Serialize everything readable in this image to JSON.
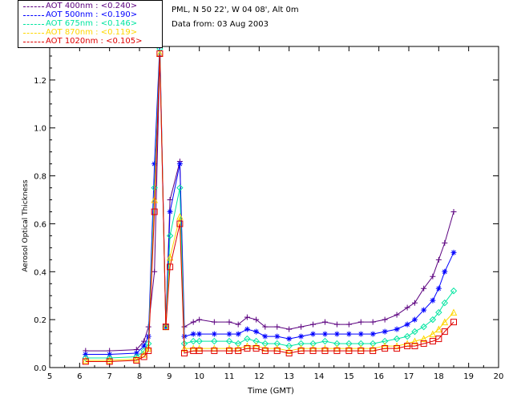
{
  "header": {
    "station": "PML, N 50 22', W 04 08', Alt 0m",
    "date": "Data from: 03 Aug 2003"
  },
  "chart_data": {
    "type": "line",
    "title": "",
    "xlabel": "Time (GMT)",
    "ylabel": "Aerosol Optical Thickness",
    "xlim": [
      5,
      20
    ],
    "ylim": [
      0,
      1.34
    ],
    "xticks": [
      "5",
      "6",
      "7",
      "8",
      "9",
      "10",
      "11",
      "12",
      "13",
      "14",
      "15",
      "16",
      "17",
      "18",
      "19",
      "20"
    ],
    "yticks": [
      "0.0",
      "0.2",
      "0.4",
      "0.6",
      "0.8",
      "1.0",
      "1.2"
    ],
    "legend_position": "top-left",
    "series": [
      {
        "name": "AOT  400nm : <0.240>",
        "color": "#5b007f",
        "marker": "plus",
        "x": [
          6.2,
          7.0,
          7.9,
          8.15,
          8.3,
          8.5,
          8.68,
          8.88,
          9.02,
          9.35,
          9.5,
          9.8,
          10.0,
          10.5,
          11.0,
          11.3,
          11.6,
          11.9,
          12.2,
          12.6,
          13.0,
          13.4,
          13.8,
          14.2,
          14.6,
          15.0,
          15.4,
          15.8,
          16.2,
          16.6,
          16.95,
          17.2,
          17.5,
          17.8,
          18.0,
          18.2,
          18.5
        ],
        "y": [
          0.07,
          0.07,
          0.075,
          0.11,
          0.17,
          0.4,
          1.3,
          0.18,
          0.7,
          0.86,
          0.17,
          0.19,
          0.2,
          0.19,
          0.19,
          0.18,
          0.21,
          0.2,
          0.17,
          0.17,
          0.16,
          0.17,
          0.18,
          0.19,
          0.18,
          0.18,
          0.19,
          0.19,
          0.2,
          0.22,
          0.25,
          0.27,
          0.33,
          0.38,
          0.45,
          0.52,
          0.65
        ]
      },
      {
        "name": "AOT  500nm : <0.190>",
        "color": "#0000ff",
        "marker": "star",
        "x": [
          6.2,
          7.0,
          7.9,
          8.15,
          8.3,
          8.5,
          8.68,
          8.88,
          9.02,
          9.35,
          9.5,
          9.8,
          10.0,
          10.5,
          11.0,
          11.3,
          11.6,
          11.9,
          12.2,
          12.6,
          13.0,
          13.4,
          13.8,
          14.2,
          14.6,
          15.0,
          15.4,
          15.8,
          16.2,
          16.6,
          16.95,
          17.2,
          17.5,
          17.8,
          18.0,
          18.2,
          18.5
        ],
        "y": [
          0.055,
          0.055,
          0.06,
          0.09,
          0.13,
          0.85,
          1.35,
          0.17,
          0.65,
          0.85,
          0.13,
          0.14,
          0.14,
          0.14,
          0.14,
          0.14,
          0.16,
          0.15,
          0.13,
          0.13,
          0.12,
          0.13,
          0.14,
          0.14,
          0.14,
          0.14,
          0.14,
          0.14,
          0.15,
          0.16,
          0.18,
          0.2,
          0.24,
          0.28,
          0.33,
          0.4,
          0.48
        ]
      },
      {
        "name": "AOT  675nm : <0.146>",
        "color": "#00e5a0",
        "marker": "diamond",
        "x": [
          6.2,
          7.0,
          7.9,
          8.15,
          8.3,
          8.5,
          8.68,
          8.88,
          9.02,
          9.35,
          9.5,
          9.8,
          10.0,
          10.5,
          11.0,
          11.3,
          11.6,
          11.9,
          12.2,
          12.6,
          13.0,
          13.4,
          13.8,
          14.2,
          14.6,
          15.0,
          15.4,
          15.8,
          16.2,
          16.6,
          16.95,
          17.2,
          17.5,
          17.8,
          18.0,
          18.2,
          18.5
        ],
        "y": [
          0.04,
          0.04,
          0.045,
          0.07,
          0.1,
          0.75,
          1.33,
          0.17,
          0.55,
          0.75,
          0.1,
          0.11,
          0.11,
          0.11,
          0.11,
          0.1,
          0.12,
          0.11,
          0.1,
          0.1,
          0.09,
          0.1,
          0.1,
          0.11,
          0.1,
          0.1,
          0.1,
          0.1,
          0.11,
          0.12,
          0.13,
          0.15,
          0.17,
          0.2,
          0.23,
          0.27,
          0.32
        ]
      },
      {
        "name": "AOT  870nm : <0.119>",
        "color": "#ffd700",
        "marker": "triangle",
        "x": [
          6.2,
          7.0,
          7.9,
          8.15,
          8.3,
          8.5,
          8.68,
          8.88,
          9.02,
          9.35,
          9.5,
          9.8,
          10.0,
          10.5,
          11.0,
          11.3,
          11.6,
          11.9,
          12.2,
          12.6,
          13.0,
          13.4,
          13.8,
          14.2,
          14.6,
          15.0,
          15.4,
          15.8,
          16.2,
          16.6,
          16.95,
          17.2,
          17.5,
          17.8,
          18.0,
          18.2,
          18.5
        ],
        "y": [
          0.03,
          0.03,
          0.035,
          0.055,
          0.08,
          0.7,
          1.31,
          0.17,
          0.46,
          0.63,
          0.08,
          0.08,
          0.08,
          0.08,
          0.08,
          0.08,
          0.09,
          0.09,
          0.08,
          0.08,
          0.07,
          0.08,
          0.08,
          0.08,
          0.08,
          0.08,
          0.08,
          0.08,
          0.09,
          0.09,
          0.1,
          0.11,
          0.12,
          0.14,
          0.16,
          0.19,
          0.23
        ]
      },
      {
        "name": "AOT 1020nm : <0.105>",
        "color": "#e00000",
        "marker": "square",
        "x": [
          6.2,
          7.0,
          7.9,
          8.15,
          8.3,
          8.5,
          8.68,
          8.88,
          9.02,
          9.35,
          9.5,
          9.8,
          10.0,
          10.5,
          11.0,
          11.3,
          11.6,
          11.9,
          12.2,
          12.6,
          13.0,
          13.4,
          13.8,
          14.2,
          14.6,
          15.0,
          15.4,
          15.8,
          16.2,
          16.6,
          16.95,
          17.2,
          17.5,
          17.8,
          18.0,
          18.2,
          18.5
        ],
        "y": [
          0.025,
          0.025,
          0.03,
          0.045,
          0.07,
          0.65,
          1.31,
          0.17,
          0.42,
          0.6,
          0.06,
          0.07,
          0.07,
          0.07,
          0.07,
          0.07,
          0.08,
          0.08,
          0.07,
          0.07,
          0.06,
          0.07,
          0.07,
          0.07,
          0.07,
          0.07,
          0.07,
          0.07,
          0.08,
          0.08,
          0.09,
          0.09,
          0.1,
          0.11,
          0.12,
          0.15,
          0.19
        ]
      }
    ]
  }
}
